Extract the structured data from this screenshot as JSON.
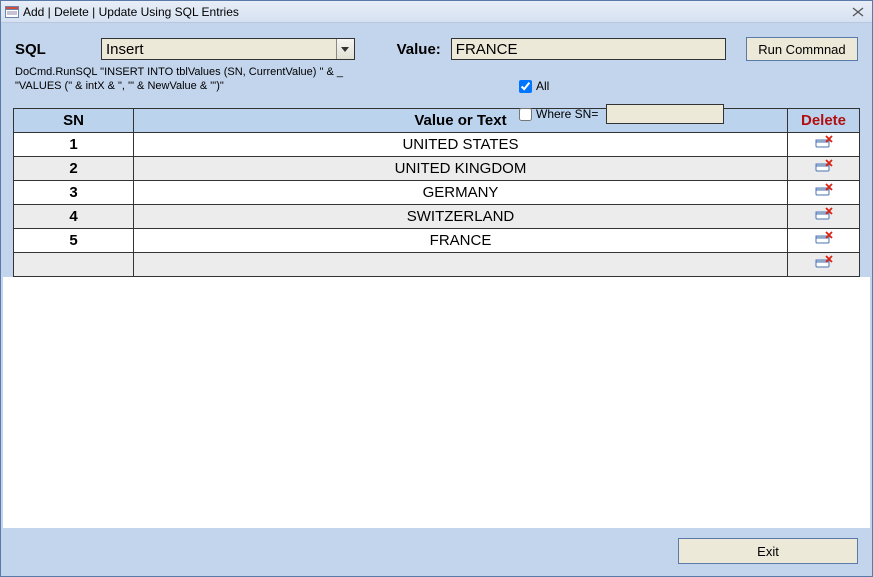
{
  "window": {
    "title": "Add | Delete | Update Using SQL Entries"
  },
  "form": {
    "sql_label": "SQL",
    "sql_selected": "Insert",
    "value_label": "Value:",
    "value_text": "FRANCE",
    "run_label": "Run Commnad",
    "code_text": "DoCmd.RunSQL \"INSERT INTO tblValues (SN, CurrentValue) \" & _\n\"VALUES (\" & intX & \", '\" & NewValue & \"')\"",
    "all_label": "All",
    "all_checked": true,
    "wheresn_label": "Where SN=",
    "wheresn_checked": false,
    "wheresn_value": ""
  },
  "grid": {
    "headers": {
      "sn": "SN",
      "value": "Value or Text",
      "delete": "Delete"
    },
    "rows": [
      {
        "sn": "1",
        "value": "UNITED STATES"
      },
      {
        "sn": "2",
        "value": "UNITED KINGDOM"
      },
      {
        "sn": "3",
        "value": "GERMANY"
      },
      {
        "sn": "4",
        "value": "SWITZERLAND"
      },
      {
        "sn": "5",
        "value": "FRANCE"
      },
      {
        "sn": "",
        "value": ""
      }
    ]
  },
  "footer": {
    "exit_label": "Exit"
  },
  "colors": {
    "panel_bg": "#c3d5ed",
    "header_bg": "#bcd3ee",
    "field_bg": "#ece9d8",
    "border": "#333333",
    "delete_hdr": "#b01010"
  }
}
